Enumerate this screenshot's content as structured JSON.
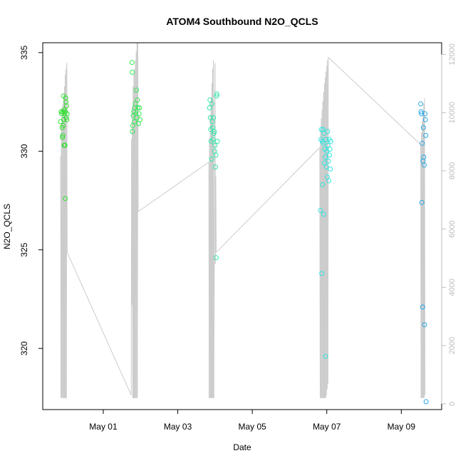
{
  "chart_data": {
    "type": "scatter",
    "title": "ATOM4 Southbound N2O_QCLS",
    "xlabel": "Date",
    "ylabel": "N2O_QCLS",
    "x_axis": {
      "type": "date",
      "range": [
        "2018-04-29T09:00",
        "2018-05-10T02:00"
      ],
      "ticks": [
        {
          "value": "2018-05-01",
          "label": "May 01"
        },
        {
          "value": "2018-05-03",
          "label": "May 03"
        },
        {
          "value": "2018-05-05",
          "label": "May 05"
        },
        {
          "value": "2018-05-07",
          "label": "May 07"
        },
        {
          "value": "2018-05-09",
          "label": "May 09"
        }
      ]
    },
    "y_axis": {
      "range": [
        316.9,
        335.5
      ],
      "ticks": [
        320,
        325,
        330,
        335
      ]
    },
    "y2_axis": {
      "color": "#bdbdbd",
      "range": [
        -200,
        12400
      ],
      "ticks": [
        0,
        2000,
        4000,
        6000,
        8000,
        10000,
        12000
      ],
      "series_color": "#cccccc"
    },
    "grid": false,
    "legend": "none",
    "series": [
      {
        "color": "#2ee02e",
        "points": [
          [
            "2018-04-29T20:30",
            331.5
          ],
          [
            "2018-04-29T20:50",
            332.0
          ],
          [
            "2018-04-29T21:10",
            331.9
          ],
          [
            "2018-04-29T21:30",
            331.2
          ],
          [
            "2018-04-29T21:40",
            330.7
          ],
          [
            "2018-04-29T21:50",
            330.8
          ],
          [
            "2018-04-29T22:00",
            332.0
          ],
          [
            "2018-04-29T22:10",
            331.3
          ],
          [
            "2018-04-29T22:20",
            332.8
          ],
          [
            "2018-04-29T22:30",
            331.6
          ],
          [
            "2018-04-29T22:40",
            332.1
          ],
          [
            "2018-04-29T22:50",
            330.3
          ],
          [
            "2018-04-29T23:00",
            331.9
          ],
          [
            "2018-04-29T23:10",
            330.3
          ],
          [
            "2018-04-29T23:20",
            330.3
          ],
          [
            "2018-04-29T23:30",
            327.6
          ],
          [
            "2018-04-29T23:40",
            332.0
          ],
          [
            "2018-04-29T23:50",
            332.7
          ],
          [
            "2018-04-30T00:00",
            332.5
          ],
          [
            "2018-04-30T00:10",
            331.7
          ],
          [
            "2018-04-30T00:20",
            332.3
          ],
          [
            "2018-04-30T00:30",
            331.6
          ],
          [
            "2018-04-30T00:40",
            331.9
          ]
        ]
      },
      {
        "color": "#32e850",
        "points": [
          [
            "2018-05-01T18:30",
            334.5
          ],
          [
            "2018-05-01T18:40",
            334.0
          ],
          [
            "2018-05-01T18:50",
            331.0
          ],
          [
            "2018-05-01T19:00",
            331.3
          ],
          [
            "2018-05-01T19:20",
            331.8
          ],
          [
            "2018-05-01T19:40",
            332.0
          ],
          [
            "2018-05-01T20:00",
            331.5
          ],
          [
            "2018-05-01T20:20",
            332.2
          ],
          [
            "2018-05-01T20:40",
            332.4
          ],
          [
            "2018-05-01T21:00",
            331.9
          ],
          [
            "2018-05-01T21:20",
            333.1
          ],
          [
            "2018-05-01T21:40",
            331.7
          ],
          [
            "2018-05-01T22:00",
            332.6
          ],
          [
            "2018-05-01T22:20",
            332.2
          ],
          [
            "2018-05-01T22:40",
            331.4
          ],
          [
            "2018-05-01T23:00",
            331.9
          ],
          [
            "2018-05-01T23:20",
            332.2
          ],
          [
            "2018-05-01T23:40",
            331.6
          ]
        ]
      },
      {
        "color": "#2ee6a6",
        "points": [
          [
            "2018-05-03T20:30",
            332.2
          ],
          [
            "2018-05-03T20:45",
            332.6
          ],
          [
            "2018-05-03T21:00",
            331.7
          ],
          [
            "2018-05-03T21:15",
            331.1
          ],
          [
            "2018-05-03T21:30",
            330.5
          ],
          [
            "2018-05-03T21:45",
            329.6
          ],
          [
            "2018-05-03T22:00",
            332.4
          ],
          [
            "2018-05-03T22:15",
            331.5
          ],
          [
            "2018-05-03T22:30",
            331.2
          ],
          [
            "2018-05-03T22:45",
            330.6
          ],
          [
            "2018-05-03T23:00",
            331.7
          ],
          [
            "2018-05-03T23:15",
            330.9
          ],
          [
            "2018-05-03T23:30",
            331.0
          ],
          [
            "2018-05-03T23:45",
            330.0
          ],
          [
            "2018-05-04T00:00",
            330.3
          ],
          [
            "2018-05-04T00:15",
            329.2
          ],
          [
            "2018-05-04T00:30",
            329.8
          ],
          [
            "2018-05-04T00:45",
            324.6
          ],
          [
            "2018-05-04T01:00",
            332.8
          ],
          [
            "2018-05-04T01:15",
            332.9
          ],
          [
            "2018-05-04T01:30",
            330.5
          ]
        ]
      },
      {
        "color": "#2ee6e0",
        "points": [
          [
            "2018-05-06T20:00",
            327.0
          ],
          [
            "2018-05-06T20:15",
            330.6
          ],
          [
            "2018-05-06T20:30",
            331.1
          ],
          [
            "2018-05-06T20:45",
            323.8
          ],
          [
            "2018-05-06T21:00",
            330.5
          ],
          [
            "2018-05-06T21:15",
            328.3
          ],
          [
            "2018-05-06T21:30",
            331.1
          ],
          [
            "2018-05-06T21:45",
            330.4
          ],
          [
            "2018-05-06T22:00",
            326.8
          ],
          [
            "2018-05-06T22:15",
            330.9
          ],
          [
            "2018-05-06T22:30",
            329.4
          ],
          [
            "2018-05-06T22:45",
            330.1
          ],
          [
            "2018-05-06T23:00",
            329.7
          ],
          [
            "2018-05-06T23:15",
            319.6
          ],
          [
            "2018-05-06T23:30",
            330.6
          ],
          [
            "2018-05-06T23:45",
            329.2
          ],
          [
            "2018-05-07T00:00",
            330.0
          ],
          [
            "2018-05-07T00:15",
            328.7
          ],
          [
            "2018-05-07T00:30",
            331.0
          ],
          [
            "2018-05-07T00:45",
            330.3
          ],
          [
            "2018-05-07T01:00",
            329.5
          ],
          [
            "2018-05-07T01:15",
            328.5
          ],
          [
            "2018-05-07T01:30",
            330.6
          ],
          [
            "2018-05-07T01:45",
            329.8
          ],
          [
            "2018-05-07T02:00",
            330.1
          ],
          [
            "2018-05-07T02:15",
            329.1
          ],
          [
            "2018-05-07T02:30",
            330.5
          ]
        ]
      },
      {
        "color": "#2aa8e8",
        "points": [
          [
            "2018-05-09T12:30",
            332.4
          ],
          [
            "2018-05-09T12:45",
            332.0
          ],
          [
            "2018-05-09T13:00",
            331.9
          ],
          [
            "2018-05-09T13:15",
            327.4
          ],
          [
            "2018-05-09T13:30",
            330.4
          ],
          [
            "2018-05-09T13:45",
            322.1
          ],
          [
            "2018-05-09T14:00",
            329.5
          ],
          [
            "2018-05-09T14:15",
            331.2
          ],
          [
            "2018-05-09T14:30",
            329.7
          ],
          [
            "2018-05-09T14:45",
            329.3
          ],
          [
            "2018-05-09T15:00",
            321.2
          ],
          [
            "2018-05-09T15:15",
            331.9
          ],
          [
            "2018-05-09T15:30",
            331.6
          ],
          [
            "2018-05-09T15:45",
            330.8
          ],
          [
            "2018-05-09T16:00",
            317.3
          ]
        ]
      }
    ],
    "series2": {
      "points": [
        [
          "2018-04-29T20:30",
          8500
        ],
        [
          "2018-04-29T20:45",
          200
        ],
        [
          "2018-04-29T21:00",
          9600
        ],
        [
          "2018-04-29T21:15",
          200
        ],
        [
          "2018-04-29T21:30",
          10100
        ],
        [
          "2018-04-29T21:45",
          200
        ],
        [
          "2018-04-29T22:00",
          10300
        ],
        [
          "2018-04-29T22:15",
          200
        ],
        [
          "2018-04-29T22:30",
          10600
        ],
        [
          "2018-04-29T22:45",
          200
        ],
        [
          "2018-04-29T23:00",
          10900
        ],
        [
          "2018-04-29T23:15",
          200
        ],
        [
          "2018-04-29T23:30",
          11300
        ],
        [
          "2018-04-29T23:45",
          200
        ],
        [
          "2018-04-30T00:00",
          11500
        ],
        [
          "2018-04-30T00:15",
          200
        ],
        [
          "2018-04-30T00:30",
          11700
        ],
        [
          "2018-04-30T00:45",
          5200
        ],
        [
          "2018-05-01T18:00",
          300
        ],
        [
          "2018-05-01T18:15",
          9100
        ],
        [
          "2018-05-01T18:30",
          3400
        ],
        [
          "2018-05-01T18:45",
          10200
        ],
        [
          "2018-05-01T19:00",
          200
        ],
        [
          "2018-05-01T19:15",
          10900
        ],
        [
          "2018-05-01T19:30",
          200
        ],
        [
          "2018-05-01T19:45",
          11300
        ],
        [
          "2018-05-01T20:00",
          200
        ],
        [
          "2018-05-01T20:15",
          11500
        ],
        [
          "2018-05-01T20:30",
          200
        ],
        [
          "2018-05-01T20:45",
          11800
        ],
        [
          "2018-05-01T21:00",
          200
        ],
        [
          "2018-05-01T21:15",
          12100
        ],
        [
          "2018-05-01T21:30",
          200
        ],
        [
          "2018-05-01T21:45",
          12400
        ],
        [
          "2018-05-01T22:00",
          200
        ],
        [
          "2018-05-01T22:15",
          12400
        ],
        [
          "2018-05-01T22:30",
          6600
        ],
        [
          "2018-05-03T20:00",
          8300
        ],
        [
          "2018-05-03T20:15",
          200
        ],
        [
          "2018-05-03T20:30",
          9100
        ],
        [
          "2018-05-03T20:45",
          200
        ],
        [
          "2018-05-03T21:00",
          9900
        ],
        [
          "2018-05-03T21:15",
          200
        ],
        [
          "2018-05-03T21:30",
          10500
        ],
        [
          "2018-05-03T21:45",
          200
        ],
        [
          "2018-05-03T22:00",
          11000
        ],
        [
          "2018-05-03T22:15",
          200
        ],
        [
          "2018-05-03T22:30",
          11500
        ],
        [
          "2018-05-03T22:45",
          200
        ],
        [
          "2018-05-03T23:00",
          11800
        ],
        [
          "2018-05-03T23:15",
          200
        ],
        [
          "2018-05-04T00:00",
          11700
        ],
        [
          "2018-05-04T00:15",
          4800
        ],
        [
          "2018-05-04T00:30",
          7800
        ],
        [
          "2018-05-04T00:45",
          5200
        ],
        [
          "2018-05-06T19:30",
          8800
        ],
        [
          "2018-05-06T19:45",
          200
        ],
        [
          "2018-05-06T20:00",
          9400
        ],
        [
          "2018-05-06T20:15",
          200
        ],
        [
          "2018-05-06T20:30",
          9800
        ],
        [
          "2018-05-06T20:45",
          200
        ],
        [
          "2018-05-06T21:00",
          10100
        ],
        [
          "2018-05-06T21:15",
          200
        ],
        [
          "2018-05-06T21:30",
          10400
        ],
        [
          "2018-05-06T21:45",
          200
        ],
        [
          "2018-05-06T22:00",
          10700
        ],
        [
          "2018-05-06T22:15",
          200
        ],
        [
          "2018-05-06T22:30",
          11000
        ],
        [
          "2018-05-06T22:45",
          200
        ],
        [
          "2018-05-06T23:00",
          11200
        ],
        [
          "2018-05-06T23:15",
          200
        ],
        [
          "2018-05-06T23:30",
          11400
        ],
        [
          "2018-05-06T23:45",
          300
        ],
        [
          "2018-05-07T00:00",
          11600
        ],
        [
          "2018-05-07T00:15",
          500
        ],
        [
          "2018-05-07T00:30",
          11800
        ],
        [
          "2018-05-07T00:45",
          700
        ],
        [
          "2018-05-07T01:00",
          11900
        ],
        [
          "2018-05-09T12:30",
          8900
        ],
        [
          "2018-05-09T12:45",
          200
        ],
        [
          "2018-05-09T13:00",
          9300
        ],
        [
          "2018-05-09T13:15",
          200
        ],
        [
          "2018-05-09T13:30",
          9700
        ],
        [
          "2018-05-09T13:45",
          200
        ],
        [
          "2018-05-09T14:00",
          10000
        ],
        [
          "2018-05-09T14:15",
          200
        ],
        [
          "2018-05-09T14:30",
          10300
        ],
        [
          "2018-05-09T14:45",
          200
        ],
        [
          "2018-05-09T15:00",
          10500
        ],
        [
          "2018-05-09T15:15",
          300
        ]
      ]
    }
  }
}
